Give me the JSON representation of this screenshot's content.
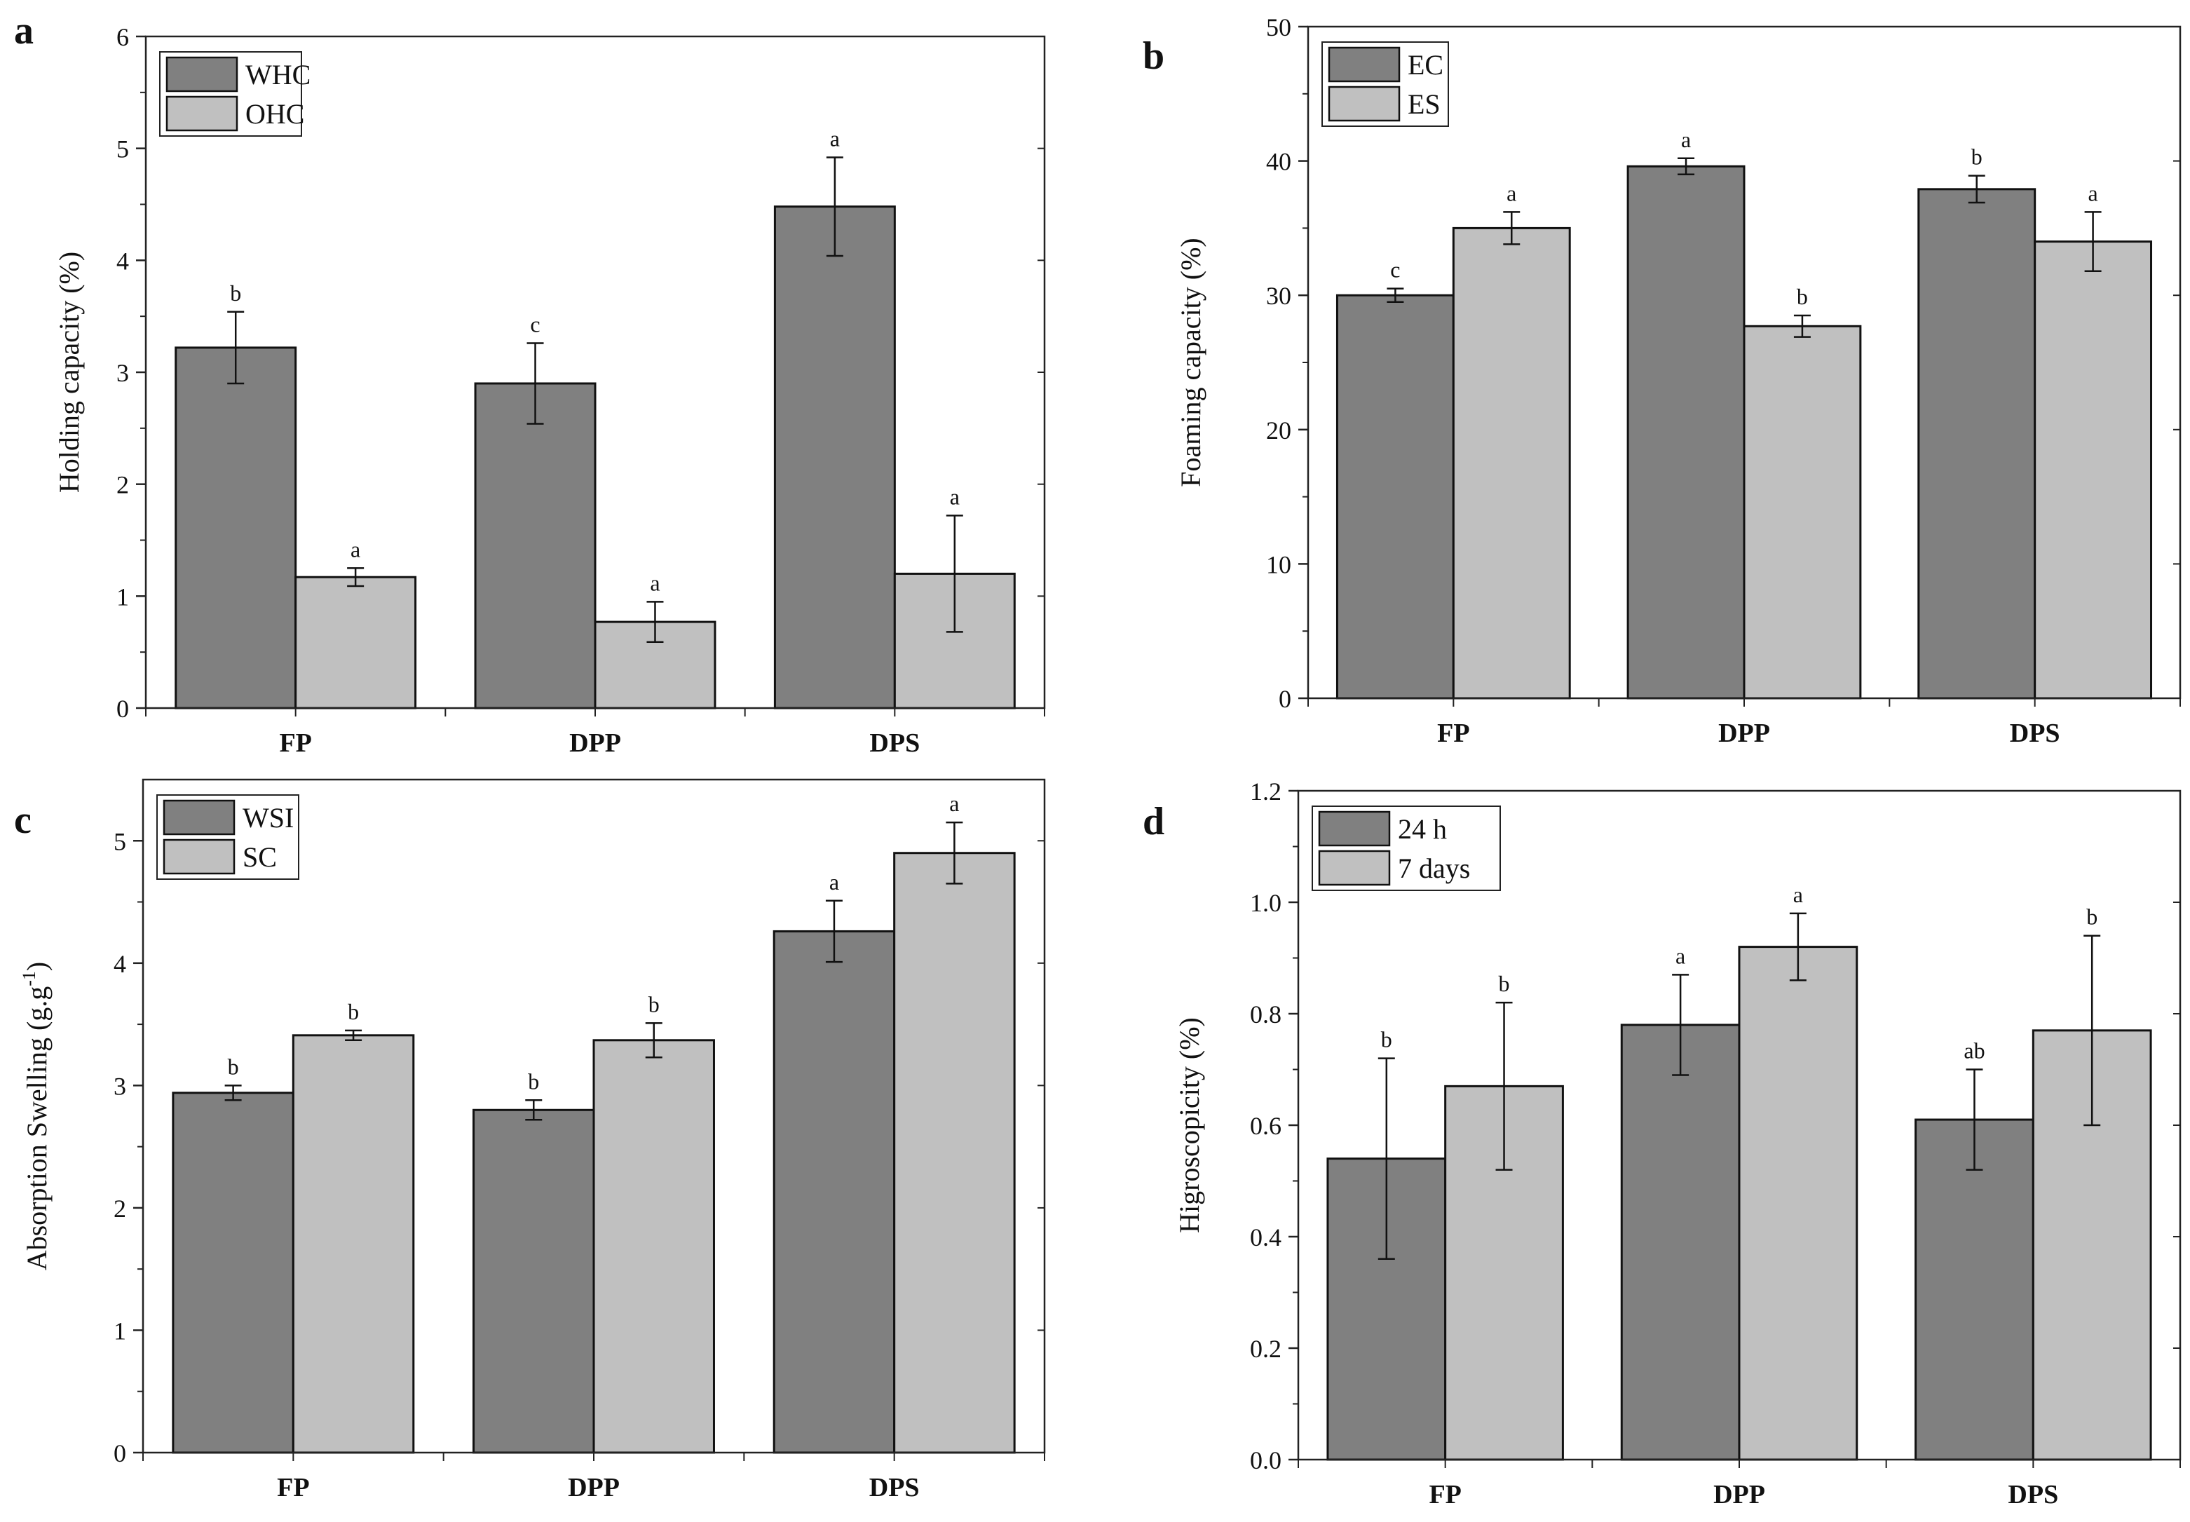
{
  "colors": {
    "series1": "#808080",
    "series2": "#c0c0c0",
    "axis": "#222222",
    "stroke": "#111111"
  },
  "chart_data": [
    {
      "panel": "a",
      "type": "bar",
      "ylabel": "Holding capacity (%)",
      "xlabel": "",
      "ylim": [
        0,
        6
      ],
      "yticks": [
        0,
        1,
        2,
        3,
        4,
        5,
        6
      ],
      "ytick_labels": [
        "0",
        "1",
        "2",
        "3",
        "4",
        "5",
        "6"
      ],
      "categories": [
        "FP",
        "DPP",
        "DPS"
      ],
      "legend_position": "top-left",
      "series": [
        {
          "name": "WHC",
          "values": [
            3.22,
            2.9,
            4.48
          ],
          "errors": [
            0.32,
            0.36,
            0.44
          ],
          "letters": [
            "b",
            "c",
            "a"
          ]
        },
        {
          "name": "OHC",
          "values": [
            1.17,
            0.77,
            1.2
          ],
          "errors": [
            0.08,
            0.18,
            0.52
          ],
          "letters": [
            "a",
            "a",
            "a"
          ]
        }
      ]
    },
    {
      "panel": "b",
      "type": "bar",
      "ylabel": "Foaming capacity (%)",
      "xlabel": "",
      "ylim": [
        0,
        50
      ],
      "yticks": [
        0,
        10,
        20,
        30,
        40,
        50
      ],
      "ytick_labels": [
        "0",
        "10",
        "20",
        "30",
        "40",
        "50"
      ],
      "categories": [
        "FP",
        "DPP",
        "DPS"
      ],
      "legend_position": "top-left",
      "series": [
        {
          "name": "EC",
          "values": [
            30.0,
            39.6,
            37.9
          ],
          "errors": [
            0.5,
            0.6,
            1.0
          ],
          "letters": [
            "c",
            "a",
            "b"
          ]
        },
        {
          "name": "ES",
          "values": [
            35.0,
            27.7,
            34.0
          ],
          "errors": [
            1.2,
            0.8,
            2.2
          ],
          "letters": [
            "a",
            "b",
            "a"
          ]
        }
      ]
    },
    {
      "panel": "c",
      "type": "bar",
      "ylabel": "Absorption Swelling (g.g-1)",
      "ylabel_main": "Absorption Swelling (g.g",
      "ylabel_sup": "-1",
      "ylabel_end": ")",
      "xlabel": "",
      "ylim": [
        0,
        5.5
      ],
      "yticks": [
        0,
        1,
        2,
        3,
        4,
        5
      ],
      "ytick_labels": [
        "0",
        "1",
        "2",
        "3",
        "4",
        "5"
      ],
      "categories": [
        "FP",
        "DPP",
        "DPS"
      ],
      "legend_position": "top-left",
      "series": [
        {
          "name": "WSI",
          "values": [
            2.94,
            2.8,
            4.26
          ],
          "errors": [
            0.06,
            0.08,
            0.25
          ],
          "letters": [
            "b",
            "b",
            "a"
          ]
        },
        {
          "name": "SC",
          "values": [
            3.41,
            3.37,
            4.9
          ],
          "errors": [
            0.04,
            0.14,
            0.25
          ],
          "letters": [
            "b",
            "b",
            "a"
          ]
        }
      ]
    },
    {
      "panel": "d",
      "type": "bar",
      "ylabel": "Higroscopicity (%)",
      "xlabel": "",
      "ylim": [
        0,
        1.2
      ],
      "yticks": [
        0,
        0.2,
        0.4,
        0.6,
        0.8,
        1.0,
        1.2
      ],
      "ytick_labels": [
        "0.0",
        "0.2",
        "0.4",
        "0.6",
        "0.8",
        "1.0",
        "1.2"
      ],
      "categories": [
        "FP",
        "DPP",
        "DPS"
      ],
      "legend_position": "top-left",
      "series": [
        {
          "name": "24 h",
          "values": [
            0.54,
            0.78,
            0.61
          ],
          "errors": [
            0.18,
            0.09,
            0.09
          ],
          "letters": [
            "b",
            "a",
            "ab"
          ]
        },
        {
          "name": "7 days",
          "values": [
            0.67,
            0.92,
            0.77
          ],
          "errors": [
            0.15,
            0.06,
            0.17
          ],
          "letters": [
            "b",
            "a",
            "b"
          ]
        }
      ]
    }
  ]
}
